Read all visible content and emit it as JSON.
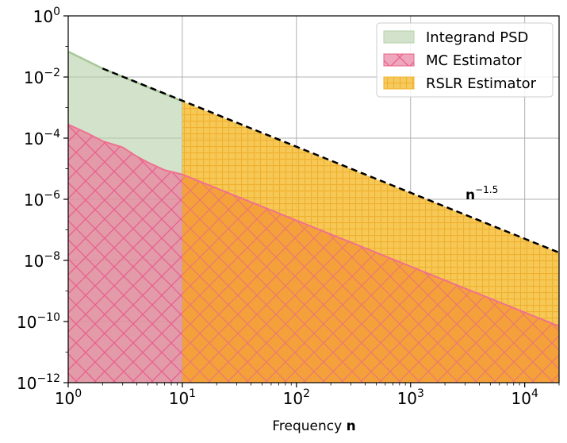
{
  "chart_data": {
    "type": "area",
    "title": "",
    "xlabel": "Frequency",
    "xlabel_bold": "n",
    "ylabel": "",
    "xscale": "log",
    "yscale": "log",
    "xlim": [
      1,
      20000
    ],
    "ylim": [
      1e-12,
      1
    ],
    "grid": true,
    "legend_position": "top-right",
    "x_ticks": [
      {
        "base": "10",
        "exp": "0"
      },
      {
        "base": "10",
        "exp": "1"
      },
      {
        "base": "10",
        "exp": "2"
      },
      {
        "base": "10",
        "exp": "3"
      },
      {
        "base": "10",
        "exp": "4"
      }
    ],
    "y_ticks": [
      {
        "base": "10",
        "exp": "0"
      },
      {
        "base": "10",
        "exp": "−2"
      },
      {
        "base": "10",
        "exp": "−4"
      },
      {
        "base": "10",
        "exp": "−6"
      },
      {
        "base": "10",
        "exp": "−8"
      },
      {
        "base": "10",
        "exp": "−10"
      },
      {
        "base": "10",
        "exp": "−12"
      }
    ],
    "series": [
      {
        "name": "Integrand PSD",
        "color": "#b5d0a8",
        "hatch": "none",
        "x": [
          1,
          2,
          10
        ],
        "y": [
          0.068,
          0.019,
          0.0016
        ]
      },
      {
        "name": "MC Estimator",
        "color": "#e8829e",
        "hatch": "cross-diagonal",
        "x": [
          1,
          1.5,
          2,
          3,
          4,
          5,
          7,
          10
        ],
        "y": [
          0.00028,
          0.00014,
          8e-05,
          5e-05,
          2.5e-05,
          1.6e-05,
          9e-06,
          6.5e-06
        ]
      },
      {
        "name": "RSLR Estimator",
        "color": "#f5c242",
        "hatch": "grid",
        "x": [
          10,
          20000
        ],
        "y": [
          0.0016,
          1.8e-08
        ]
      },
      {
        "name": "",
        "color": "#f4a13b",
        "hatch": "none",
        "x": [
          10,
          20000
        ],
        "y": [
          6.5e-06,
          7e-11
        ]
      }
    ],
    "reference_line": {
      "label_base": "n",
      "label_exp": "−1.5",
      "x": [
        2,
        20000
      ],
      "y": [
        0.019,
        1.8e-08
      ],
      "style": "dashed",
      "color": "#000000"
    }
  }
}
